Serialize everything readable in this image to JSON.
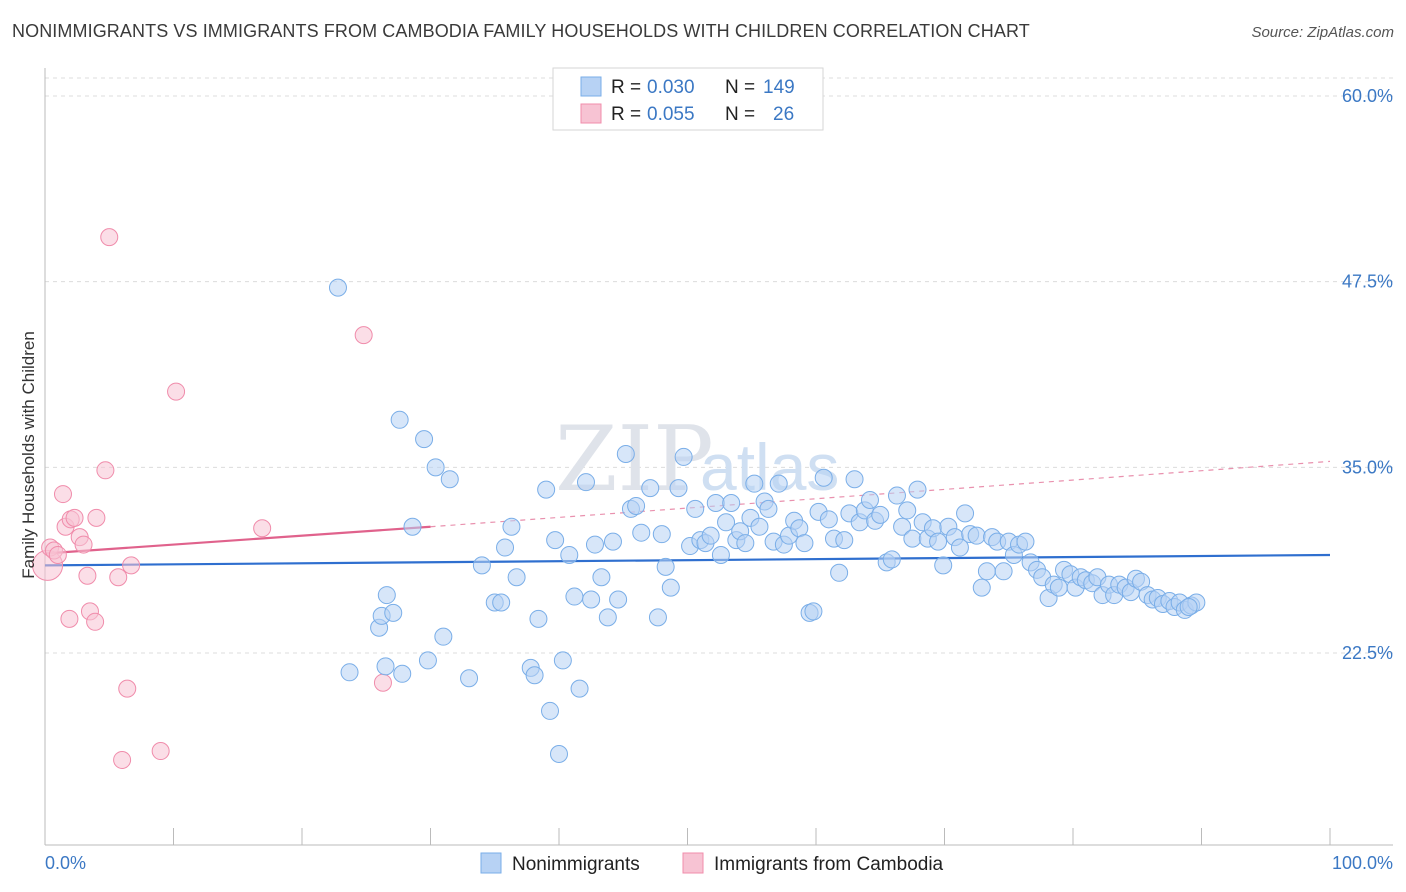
{
  "title": "NONIMMIGRANTS VS IMMIGRANTS FROM CAMBODIA FAMILY HOUSEHOLDS WITH CHILDREN CORRELATION CHART",
  "source": "Source: ZipAtlas.com",
  "watermark": {
    "zip": "ZIP",
    "atlas": "atlas"
  },
  "colors": {
    "blue": "#7aaee8",
    "blue_fill": "#b7d2f4",
    "blue_line": "#2f6fcf",
    "pink": "#f08cab",
    "pink_fill": "#f7c3d3",
    "pink_line": "#e0628c",
    "axis_label": "#3b78c4"
  },
  "legend": {
    "r_label": "R =",
    "n_label": "N =",
    "rows": [
      {
        "r": "0.030",
        "n": "149"
      },
      {
        "r": "0.055",
        "n": "26"
      }
    ]
  },
  "bottom_legend": [
    "Nonimmigrants",
    "Immigrants from Cambodia"
  ],
  "chart_data": {
    "type": "scatter",
    "title": "NONIMMIGRANTS VS IMMIGRANTS FROM CAMBODIA FAMILY HOUSEHOLDS WITH CHILDREN CORRELATION CHART",
    "xlabel": "",
    "ylabel": "Family Households with Children",
    "xlim": [
      0,
      100
    ],
    "ylim": [
      10,
      62
    ],
    "x_tick_labels": [
      "0.0%",
      "100.0%"
    ],
    "y_ticks": [
      22.5,
      35.0,
      47.5,
      60.0
    ],
    "y_tick_labels": [
      "22.5%",
      "35.0%",
      "47.5%",
      "60.0%"
    ],
    "grid": true,
    "legend_position": "top-center",
    "series": [
      {
        "name": "Nonimmigrants",
        "R": 0.03,
        "N": 149,
        "trend": {
          "x": [
            0,
            100
          ],
          "y": [
            28.4,
            29.1
          ]
        },
        "points": [
          [
            22.8,
            47.1
          ],
          [
            27.6,
            38.2
          ],
          [
            29.5,
            36.9
          ],
          [
            30.4,
            35.0
          ],
          [
            31.5,
            34.2
          ],
          [
            28.6,
            31.0
          ],
          [
            23.7,
            21.2
          ],
          [
            26.0,
            24.2
          ],
          [
            27.8,
            21.1
          ],
          [
            26.5,
            21.6
          ],
          [
            26.2,
            25.0
          ],
          [
            26.6,
            26.4
          ],
          [
            27.1,
            25.2
          ],
          [
            29.8,
            22.0
          ],
          [
            31.0,
            23.6
          ],
          [
            33.0,
            20.8
          ],
          [
            34.0,
            28.4
          ],
          [
            35.0,
            25.9
          ],
          [
            35.5,
            25.9
          ],
          [
            35.8,
            29.6
          ],
          [
            36.3,
            31.0
          ],
          [
            36.7,
            27.6
          ],
          [
            37.8,
            21.5
          ],
          [
            38.1,
            21.0
          ],
          [
            38.4,
            24.8
          ],
          [
            39.0,
            33.5
          ],
          [
            39.3,
            18.6
          ],
          [
            39.7,
            30.1
          ],
          [
            40.0,
            15.7
          ],
          [
            40.3,
            22.0
          ],
          [
            40.8,
            29.1
          ],
          [
            41.2,
            26.3
          ],
          [
            41.6,
            20.1
          ],
          [
            42.1,
            34.0
          ],
          [
            42.5,
            26.1
          ],
          [
            42.8,
            29.8
          ],
          [
            43.3,
            27.6
          ],
          [
            43.8,
            24.9
          ],
          [
            44.2,
            30.0
          ],
          [
            44.6,
            26.1
          ],
          [
            45.2,
            35.9
          ],
          [
            45.6,
            32.2
          ],
          [
            46.0,
            32.4
          ],
          [
            46.4,
            30.6
          ],
          [
            47.1,
            33.6
          ],
          [
            47.7,
            24.9
          ],
          [
            48.0,
            30.5
          ],
          [
            48.3,
            28.3
          ],
          [
            48.7,
            26.9
          ],
          [
            49.3,
            33.6
          ],
          [
            49.7,
            35.7
          ],
          [
            50.2,
            29.7
          ],
          [
            50.6,
            32.2
          ],
          [
            51.0,
            30.1
          ],
          [
            51.4,
            29.9
          ],
          [
            51.8,
            30.4
          ],
          [
            52.2,
            32.6
          ],
          [
            52.6,
            29.1
          ],
          [
            53.0,
            31.3
          ],
          [
            53.4,
            32.6
          ],
          [
            53.8,
            30.1
          ],
          [
            54.1,
            30.7
          ],
          [
            54.5,
            29.9
          ],
          [
            54.9,
            31.6
          ],
          [
            55.2,
            33.9
          ],
          [
            55.6,
            31.0
          ],
          [
            56.0,
            32.7
          ],
          [
            56.3,
            32.2
          ],
          [
            56.7,
            30.0
          ],
          [
            57.1,
            33.9
          ],
          [
            57.5,
            29.8
          ],
          [
            57.9,
            30.4
          ],
          [
            58.3,
            31.4
          ],
          [
            58.7,
            30.9
          ],
          [
            59.1,
            29.9
          ],
          [
            59.5,
            25.2
          ],
          [
            59.8,
            25.3
          ],
          [
            60.2,
            32.0
          ],
          [
            60.6,
            34.3
          ],
          [
            61.0,
            31.5
          ],
          [
            61.4,
            30.2
          ],
          [
            61.8,
            27.9
          ],
          [
            62.2,
            30.1
          ],
          [
            62.6,
            31.9
          ],
          [
            63.0,
            34.2
          ],
          [
            63.4,
            31.3
          ],
          [
            63.8,
            32.1
          ],
          [
            64.2,
            32.8
          ],
          [
            64.6,
            31.4
          ],
          [
            65.0,
            31.8
          ],
          [
            65.5,
            28.6
          ],
          [
            65.9,
            28.8
          ],
          [
            66.3,
            33.1
          ],
          [
            66.7,
            31.0
          ],
          [
            67.1,
            32.1
          ],
          [
            67.5,
            30.2
          ],
          [
            67.9,
            33.5
          ],
          [
            68.3,
            31.3
          ],
          [
            68.7,
            30.2
          ],
          [
            69.1,
            30.9
          ],
          [
            69.5,
            30.0
          ],
          [
            69.9,
            28.4
          ],
          [
            70.3,
            31.0
          ],
          [
            70.8,
            30.3
          ],
          [
            71.2,
            29.6
          ],
          [
            71.6,
            31.9
          ],
          [
            72.0,
            30.5
          ],
          [
            72.5,
            30.4
          ],
          [
            72.9,
            26.9
          ],
          [
            73.3,
            28.0
          ],
          [
            73.7,
            30.3
          ],
          [
            74.1,
            30.0
          ],
          [
            74.6,
            28.0
          ],
          [
            75.0,
            30.0
          ],
          [
            75.4,
            29.1
          ],
          [
            75.8,
            29.8
          ],
          [
            76.3,
            30.0
          ],
          [
            76.7,
            28.6
          ],
          [
            77.2,
            28.1
          ],
          [
            77.6,
            27.6
          ],
          [
            78.1,
            26.2
          ],
          [
            78.5,
            27.1
          ],
          [
            78.9,
            26.9
          ],
          [
            79.3,
            28.1
          ],
          [
            79.8,
            27.8
          ],
          [
            80.2,
            26.9
          ],
          [
            80.6,
            27.6
          ],
          [
            81.0,
            27.4
          ],
          [
            81.5,
            27.2
          ],
          [
            81.9,
            27.6
          ],
          [
            82.3,
            26.4
          ],
          [
            82.8,
            27.1
          ],
          [
            83.2,
            26.4
          ],
          [
            83.6,
            27.1
          ],
          [
            84.1,
            26.9
          ],
          [
            84.5,
            26.6
          ],
          [
            84.9,
            27.5
          ],
          [
            85.3,
            27.3
          ],
          [
            85.8,
            26.4
          ],
          [
            86.2,
            26.1
          ],
          [
            86.6,
            26.2
          ],
          [
            87.0,
            25.8
          ],
          [
            87.5,
            26.0
          ],
          [
            87.9,
            25.6
          ],
          [
            88.3,
            25.9
          ],
          [
            88.7,
            25.4
          ],
          [
            89.2,
            25.7
          ],
          [
            89.6,
            25.9
          ],
          [
            89.0,
            25.6
          ]
        ]
      },
      {
        "name": "Immigrants from Cambodia",
        "R": 0.055,
        "N": 26,
        "trend_solid": {
          "x": [
            0,
            30
          ],
          "y": [
            29.2,
            31.0
          ]
        },
        "trend_dashed": {
          "x": [
            30,
            100
          ],
          "y": [
            31.0,
            35.4
          ]
        },
        "points": [
          [
            0.2,
            28.4
          ],
          [
            0.4,
            29.6
          ],
          [
            0.7,
            29.4
          ],
          [
            1.0,
            29.1
          ],
          [
            1.4,
            33.2
          ],
          [
            1.6,
            31.0
          ],
          [
            1.9,
            24.8
          ],
          [
            2.0,
            31.5
          ],
          [
            2.3,
            31.6
          ],
          [
            2.7,
            30.3
          ],
          [
            3.0,
            29.8
          ],
          [
            3.3,
            27.7
          ],
          [
            3.5,
            25.3
          ],
          [
            3.9,
            24.6
          ],
          [
            4.0,
            31.6
          ],
          [
            4.7,
            34.8
          ],
          [
            5.0,
            50.5
          ],
          [
            5.7,
            27.6
          ],
          [
            6.0,
            15.3
          ],
          [
            6.4,
            20.1
          ],
          [
            6.7,
            28.4
          ],
          [
            9.0,
            15.9
          ],
          [
            10.2,
            40.1
          ],
          [
            16.9,
            30.9
          ],
          [
            24.8,
            43.9
          ],
          [
            26.3,
            20.5
          ]
        ]
      }
    ]
  }
}
